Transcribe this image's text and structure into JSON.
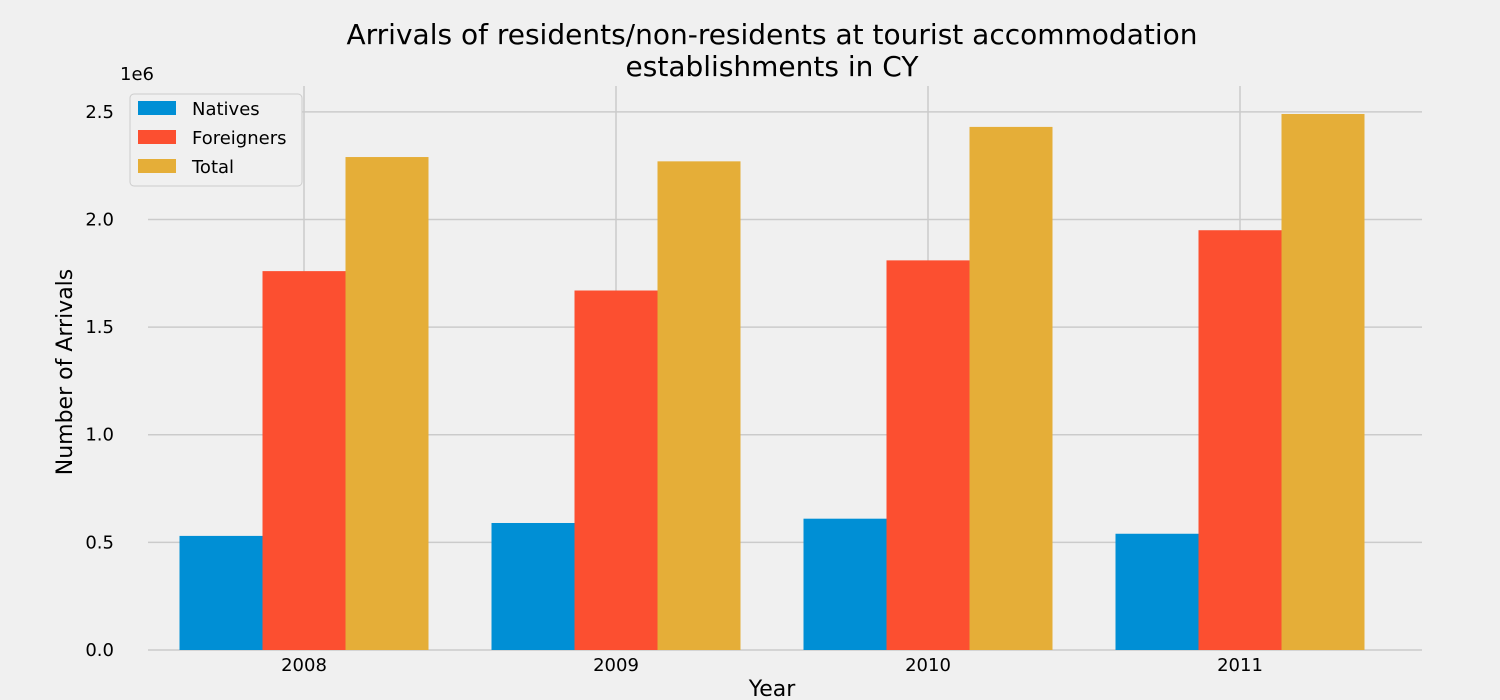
{
  "chart_data": {
    "type": "bar",
    "title_lines": [
      "Arrivals of residents/non-residents at tourist accommodation",
      "establishments in CY"
    ],
    "xlabel": "Year",
    "ylabel": "Number of Arrivals",
    "y_multiplier_label": "1e6",
    "categories": [
      "2008",
      "2009",
      "2010",
      "2011"
    ],
    "ylim": [
      0,
      2.62
    ],
    "yticks": [
      0.0,
      0.5,
      1.0,
      1.5,
      2.0,
      2.5
    ],
    "ytick_labels": [
      "0.0",
      "0.5",
      "1.0",
      "1.5",
      "2.0",
      "2.5"
    ],
    "grid": true,
    "legend_position": "top-left",
    "series": [
      {
        "name": "Natives",
        "color": "#008fd5",
        "values": [
          0.53,
          0.59,
          0.61,
          0.54
        ]
      },
      {
        "name": "Foreigners",
        "color": "#fc4f30",
        "values": [
          1.76,
          1.67,
          1.81,
          1.95
        ]
      },
      {
        "name": "Total",
        "color": "#e5ae38",
        "values": [
          2.29,
          2.27,
          2.43,
          2.49
        ]
      }
    ]
  }
}
